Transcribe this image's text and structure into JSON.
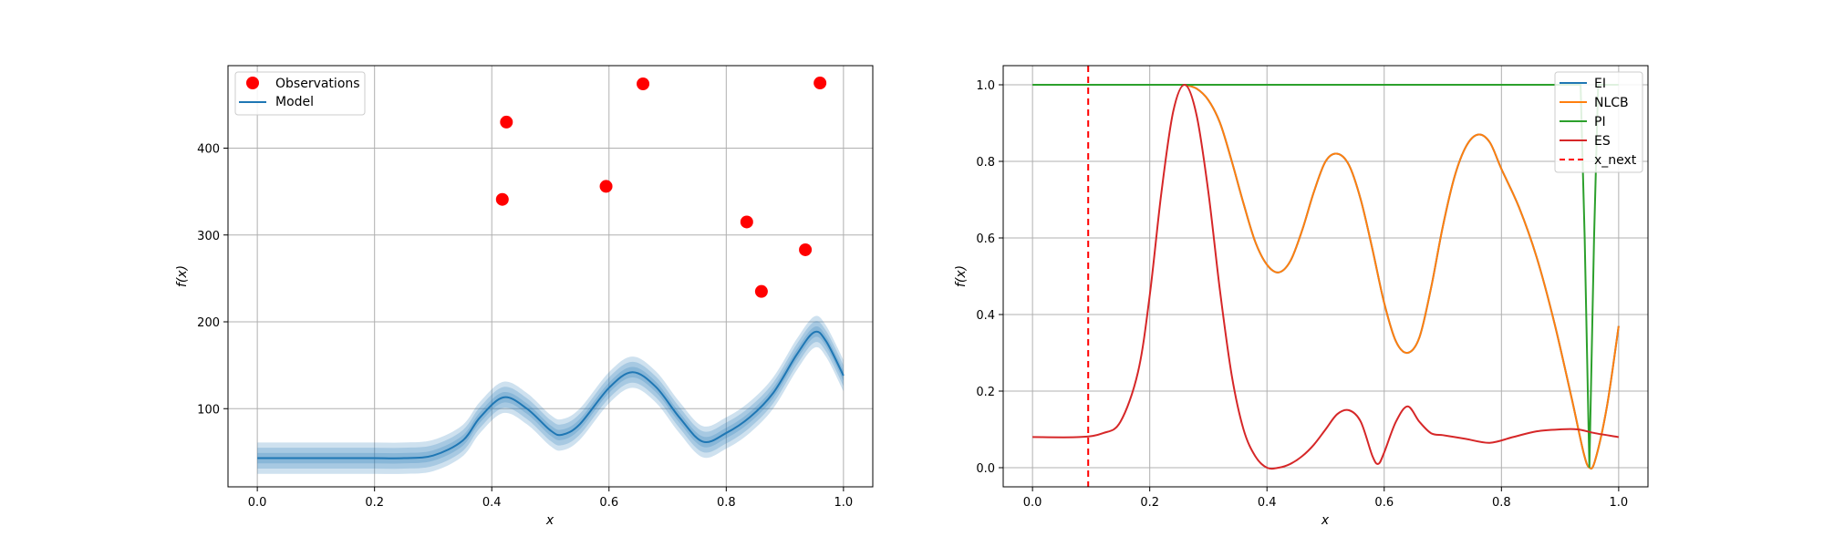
{
  "chart_data": [
    {
      "type": "scatter",
      "xlabel": "x",
      "ylabel": "f(x)",
      "xlim": [
        -0.05,
        1.05
      ],
      "ylim": [
        10,
        495
      ],
      "grid": true,
      "legend_position": "top-left",
      "xticks": [
        "0.0",
        "0.2",
        "0.4",
        "0.6",
        "0.8",
        "1.0"
      ],
      "yticks": [
        "100",
        "200",
        "300",
        "400"
      ],
      "legend": [
        {
          "label": "Observations",
          "color": "#ff0000",
          "marker": "circle"
        },
        {
          "label": "Model",
          "color": "#1f77b4",
          "marker": "line"
        }
      ],
      "observations": {
        "name": "Observations",
        "x": [
          0.418,
          0.425,
          0.595,
          0.658,
          0.835,
          0.86,
          0.935,
          0.96
        ],
        "y": [
          341,
          430,
          356,
          474,
          315,
          235,
          283,
          475
        ]
      },
      "model": {
        "name": "Model",
        "color": "#1f77b4",
        "x": [
          0.0,
          0.05,
          0.1,
          0.15,
          0.2,
          0.25,
          0.3,
          0.35,
          0.38,
          0.42,
          0.46,
          0.5,
          0.52,
          0.55,
          0.6,
          0.64,
          0.68,
          0.72,
          0.76,
          0.8,
          0.84,
          0.88,
          0.92,
          0.95,
          0.97,
          1.0
        ],
        "mean": [
          43,
          43,
          43,
          43,
          43,
          43,
          46,
          63,
          90,
          113,
          100,
          75,
          70,
          82,
          124,
          142,
          125,
          90,
          62,
          72,
          90,
          118,
          162,
          188,
          178,
          138
        ],
        "band_widths": [
          6,
          12,
          18
        ]
      }
    },
    {
      "type": "line",
      "xlabel": "x",
      "ylabel": "f(x)",
      "xlim": [
        -0.05,
        1.05
      ],
      "ylim": [
        -0.05,
        1.05
      ],
      "grid": true,
      "legend_position": "top-right",
      "xticks": [
        "0.0",
        "0.2",
        "0.4",
        "0.6",
        "0.8",
        "1.0"
      ],
      "yticks": [
        "0.0",
        "0.2",
        "0.4",
        "0.6",
        "0.8",
        "1.0"
      ],
      "legend": [
        {
          "label": "EI",
          "color": "#1f77b4",
          "style": "solid"
        },
        {
          "label": "NLCB",
          "color": "#ff7f0e",
          "style": "solid"
        },
        {
          "label": "PI",
          "color": "#2ca02c",
          "style": "solid"
        },
        {
          "label": "ES",
          "color": "#d62728",
          "style": "solid"
        },
        {
          "label": "x_next",
          "color": "#ff0000",
          "style": "dashed"
        }
      ],
      "x_next": 0.095,
      "series": [
        {
          "name": "EI",
          "color": "#1f77b4",
          "x": [
            0.0,
            0.1,
            0.2,
            0.24,
            0.26,
            0.28,
            0.3,
            0.32,
            0.34,
            0.36,
            0.38,
            0.4,
            0.42,
            0.44,
            0.46,
            0.48,
            0.5,
            0.52,
            0.54,
            0.56,
            0.58,
            0.6,
            0.62,
            0.64,
            0.66,
            0.68,
            0.7,
            0.72,
            0.74,
            0.76,
            0.78,
            0.8,
            0.83,
            0.86,
            0.89,
            0.92,
            0.94,
            0.95,
            0.96,
            0.98,
            1.0
          ],
          "y": [
            null,
            null,
            null,
            null,
            1.0,
            0.99,
            0.96,
            0.9,
            0.8,
            0.69,
            0.59,
            0.53,
            0.51,
            0.54,
            0.62,
            0.72,
            0.8,
            0.82,
            0.79,
            0.7,
            0.57,
            0.43,
            0.33,
            0.3,
            0.34,
            0.47,
            0.63,
            0.76,
            0.84,
            0.87,
            0.85,
            0.78,
            0.68,
            0.55,
            0.38,
            0.18,
            0.04,
            0.0,
            0.02,
            0.16,
            0.37
          ]
        },
        {
          "name": "NLCB",
          "color": "#ff7f0e",
          "x": [
            0.0,
            0.1,
            0.2,
            0.24,
            0.26,
            0.28,
            0.3,
            0.32,
            0.34,
            0.36,
            0.38,
            0.4,
            0.42,
            0.44,
            0.46,
            0.48,
            0.5,
            0.52,
            0.54,
            0.56,
            0.58,
            0.6,
            0.62,
            0.64,
            0.66,
            0.68,
            0.7,
            0.72,
            0.74,
            0.76,
            0.78,
            0.8,
            0.83,
            0.86,
            0.89,
            0.92,
            0.94,
            0.95,
            0.96,
            0.98,
            1.0
          ],
          "y": [
            null,
            null,
            null,
            null,
            1.0,
            0.99,
            0.96,
            0.9,
            0.8,
            0.69,
            0.59,
            0.53,
            0.51,
            0.54,
            0.62,
            0.72,
            0.8,
            0.82,
            0.79,
            0.7,
            0.57,
            0.43,
            0.33,
            0.3,
            0.34,
            0.47,
            0.63,
            0.76,
            0.84,
            0.87,
            0.85,
            0.78,
            0.68,
            0.55,
            0.38,
            0.18,
            0.04,
            0.0,
            0.02,
            0.16,
            0.37
          ]
        },
        {
          "name": "PI",
          "color": "#2ca02c",
          "x": [
            0.0,
            0.9,
            0.935,
            0.942,
            0.95,
            0.958,
            0.965,
            1.0
          ],
          "y": [
            1.0,
            1.0,
            1.0,
            0.6,
            0.0,
            0.6,
            1.0,
            1.0
          ]
        },
        {
          "name": "ES",
          "color": "#d62728",
          "x": [
            0.0,
            0.08,
            0.12,
            0.15,
            0.18,
            0.2,
            0.22,
            0.24,
            0.26,
            0.28,
            0.3,
            0.32,
            0.34,
            0.36,
            0.38,
            0.4,
            0.42,
            0.44,
            0.46,
            0.48,
            0.5,
            0.52,
            0.54,
            0.56,
            0.58,
            0.59,
            0.6,
            0.62,
            0.64,
            0.66,
            0.68,
            0.7,
            0.72,
            0.74,
            0.78,
            0.82,
            0.86,
            0.9,
            0.93,
            0.96,
            1.0
          ],
          "y": [
            0.08,
            0.08,
            0.09,
            0.12,
            0.25,
            0.45,
            0.72,
            0.93,
            1.0,
            0.92,
            0.72,
            0.46,
            0.24,
            0.1,
            0.03,
            0.0,
            0.0,
            0.01,
            0.03,
            0.06,
            0.1,
            0.14,
            0.15,
            0.12,
            0.03,
            0.01,
            0.04,
            0.12,
            0.16,
            0.12,
            0.09,
            0.085,
            0.08,
            0.075,
            0.065,
            0.08,
            0.095,
            0.1,
            0.1,
            0.09,
            0.08
          ]
        }
      ]
    }
  ]
}
